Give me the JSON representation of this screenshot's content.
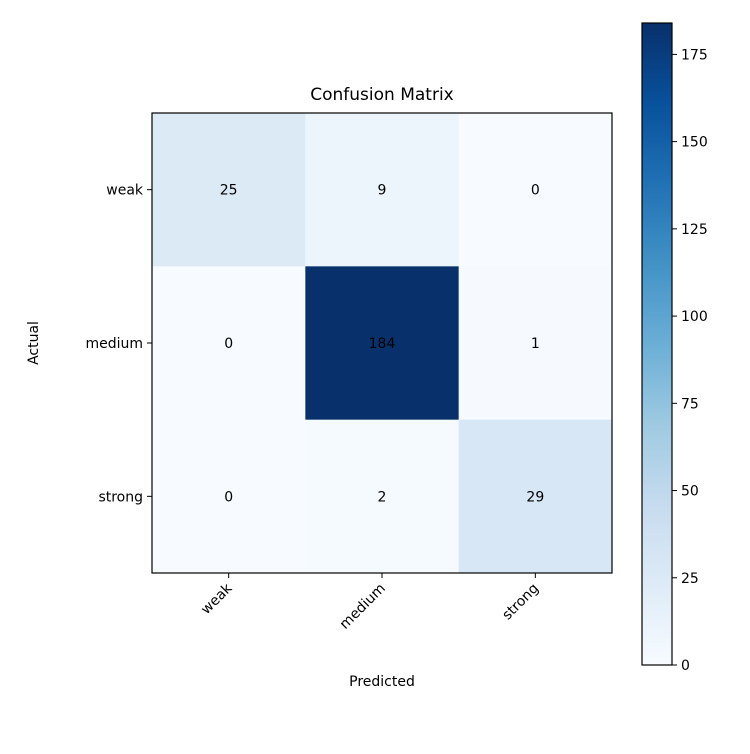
{
  "chart_data": {
    "type": "heatmap",
    "title": "Confusion Matrix",
    "xlabel": "Predicted",
    "ylabel": "Actual",
    "x_categories": [
      "weak",
      "medium",
      "strong"
    ],
    "y_categories": [
      "weak",
      "medium",
      "strong"
    ],
    "values": [
      [
        25,
        9,
        0
      ],
      [
        0,
        184,
        1
      ],
      [
        0,
        2,
        29
      ]
    ],
    "colormap": "Blues",
    "vmin": 0,
    "vmax": 184,
    "colorbar_ticks": [
      0,
      25,
      50,
      75,
      100,
      125,
      150,
      175
    ],
    "colors": {
      "low": "#f7fbff",
      "high": "#08306b",
      "cell_text": "#000000"
    }
  }
}
